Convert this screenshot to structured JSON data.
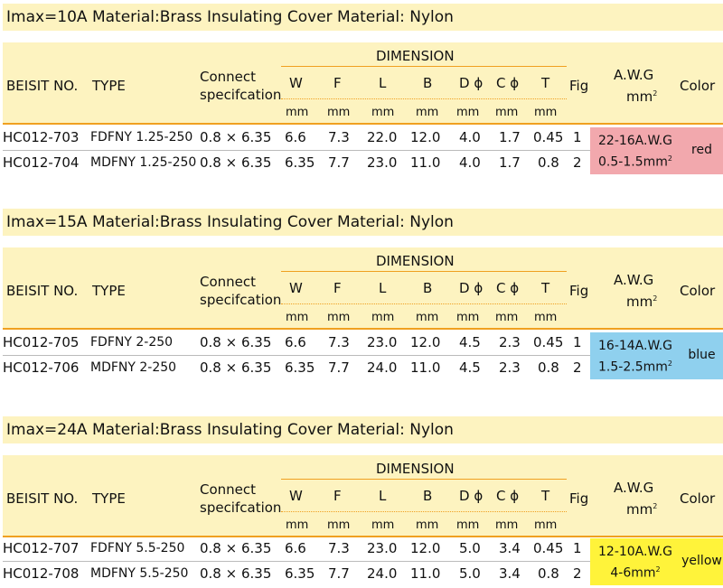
{
  "sections": [
    {
      "title": "Imax=10A Material:Brass Insulating Cover Material: Nylon",
      "header": {
        "beisit_no": "BEISIT NO.",
        "type": "TYPE",
        "connect_1": "Connect",
        "connect_2": "specifcation",
        "dimension": "DIMENSION",
        "w": "W",
        "f": "F",
        "l": "L",
        "b": "B",
        "d": "D ϕ",
        "c": "C ϕ",
        "t": "T",
        "unit": "mm",
        "fig": "Fig",
        "awg": "A.W.G",
        "awg_unit": "mm",
        "awg_sup": "2",
        "color": "Color"
      },
      "rows": [
        {
          "no": "HC012-703",
          "type": "FDFNY 1.25-250",
          "connect": "0.8 × 6.35",
          "w": "6.6",
          "f": "7.3",
          "l": "22.0",
          "b": "12.0",
          "d": "4.0",
          "c": "1.7",
          "t": "0.45",
          "fig": "1"
        },
        {
          "no": "HC012-704",
          "type": "MDFNY 1.25-250",
          "connect": "0.8 × 6.35",
          "w": "6.35",
          "f": "7.7",
          "l": "23.0",
          "b": "11.0",
          "d": "4.0",
          "c": "1.7",
          "t": "0.8",
          "fig": "2"
        }
      ],
      "awg_line1": "22-16A.W.G",
      "awg_line2": "0.5-1.5mm",
      "awg_sup": "2",
      "color_name": "red",
      "color_bg": "#f2a8ad"
    },
    {
      "title": "Imax=15A Material:Brass Insulating Cover Material: Nylon",
      "header": {
        "beisit_no": "BEISIT NO.",
        "type": "TYPE",
        "connect_1": "Connect",
        "connect_2": "specifcation",
        "dimension": "DIMENSION",
        "w": "W",
        "f": "F",
        "l": "L",
        "b": "B",
        "d": "D ϕ",
        "c": "C ϕ",
        "t": "T",
        "unit": "mm",
        "fig": "Fig",
        "awg": "A.W.G",
        "awg_unit": "mm",
        "awg_sup": "2",
        "color": "Color"
      },
      "rows": [
        {
          "no": "HC012-705",
          "type": "FDFNY 2-250",
          "connect": "0.8 × 6.35",
          "w": "6.6",
          "f": "7.3",
          "l": "23.0",
          "b": "12.0",
          "d": "4.5",
          "c": "2.3",
          "t": "0.45",
          "fig": "1"
        },
        {
          "no": "HC012-706",
          "type": "MDFNY 2-250",
          "connect": "0.8 × 6.35",
          "w": "6.35",
          "f": "7.7",
          "l": "24.0",
          "b": "11.0",
          "d": "4.5",
          "c": "2.3",
          "t": "0.8",
          "fig": "2"
        }
      ],
      "awg_line1": "16-14A.W.G",
      "awg_line2": "1.5-2.5mm",
      "awg_sup": "2",
      "color_name": "blue",
      "color_bg": "#8fd0ee"
    },
    {
      "title": "Imax=24A Material:Brass Insulating Cover Material: Nylon",
      "header": {
        "beisit_no": "BEISIT NO.",
        "type": "TYPE",
        "connect_1": "Connect",
        "connect_2": "specifcation",
        "dimension": "DIMENSION",
        "w": "W",
        "f": "F",
        "l": "L",
        "b": "B",
        "d": "D ϕ",
        "c": "C ϕ",
        "t": "T",
        "unit": "mm",
        "fig": "Fig",
        "awg": "A.W.G",
        "awg_unit": "mm",
        "awg_sup": "2",
        "color": "Color"
      },
      "rows": [
        {
          "no": "HC012-707",
          "type": "FDFNY 5.5-250",
          "connect": "0.8 × 6.35",
          "w": "6.6",
          "f": "7.3",
          "l": "23.0",
          "b": "12.0",
          "d": "5.0",
          "c": "3.4",
          "t": "0.45",
          "fig": "1"
        },
        {
          "no": "HC012-708",
          "type": "MDFNY 5.5-250",
          "connect": "0.8 × 6.35",
          "w": "6.35",
          "f": "7.7",
          "l": "24.0",
          "b": "11.0",
          "d": "5.0",
          "c": "3.4",
          "t": "0.8",
          "fig": "2"
        }
      ],
      "awg_line1": "12-10A.W.G",
      "awg_line2": "4-6mm",
      "awg_sup": "2",
      "color_name": "yellow",
      "color_bg": "#fff33a"
    }
  ]
}
